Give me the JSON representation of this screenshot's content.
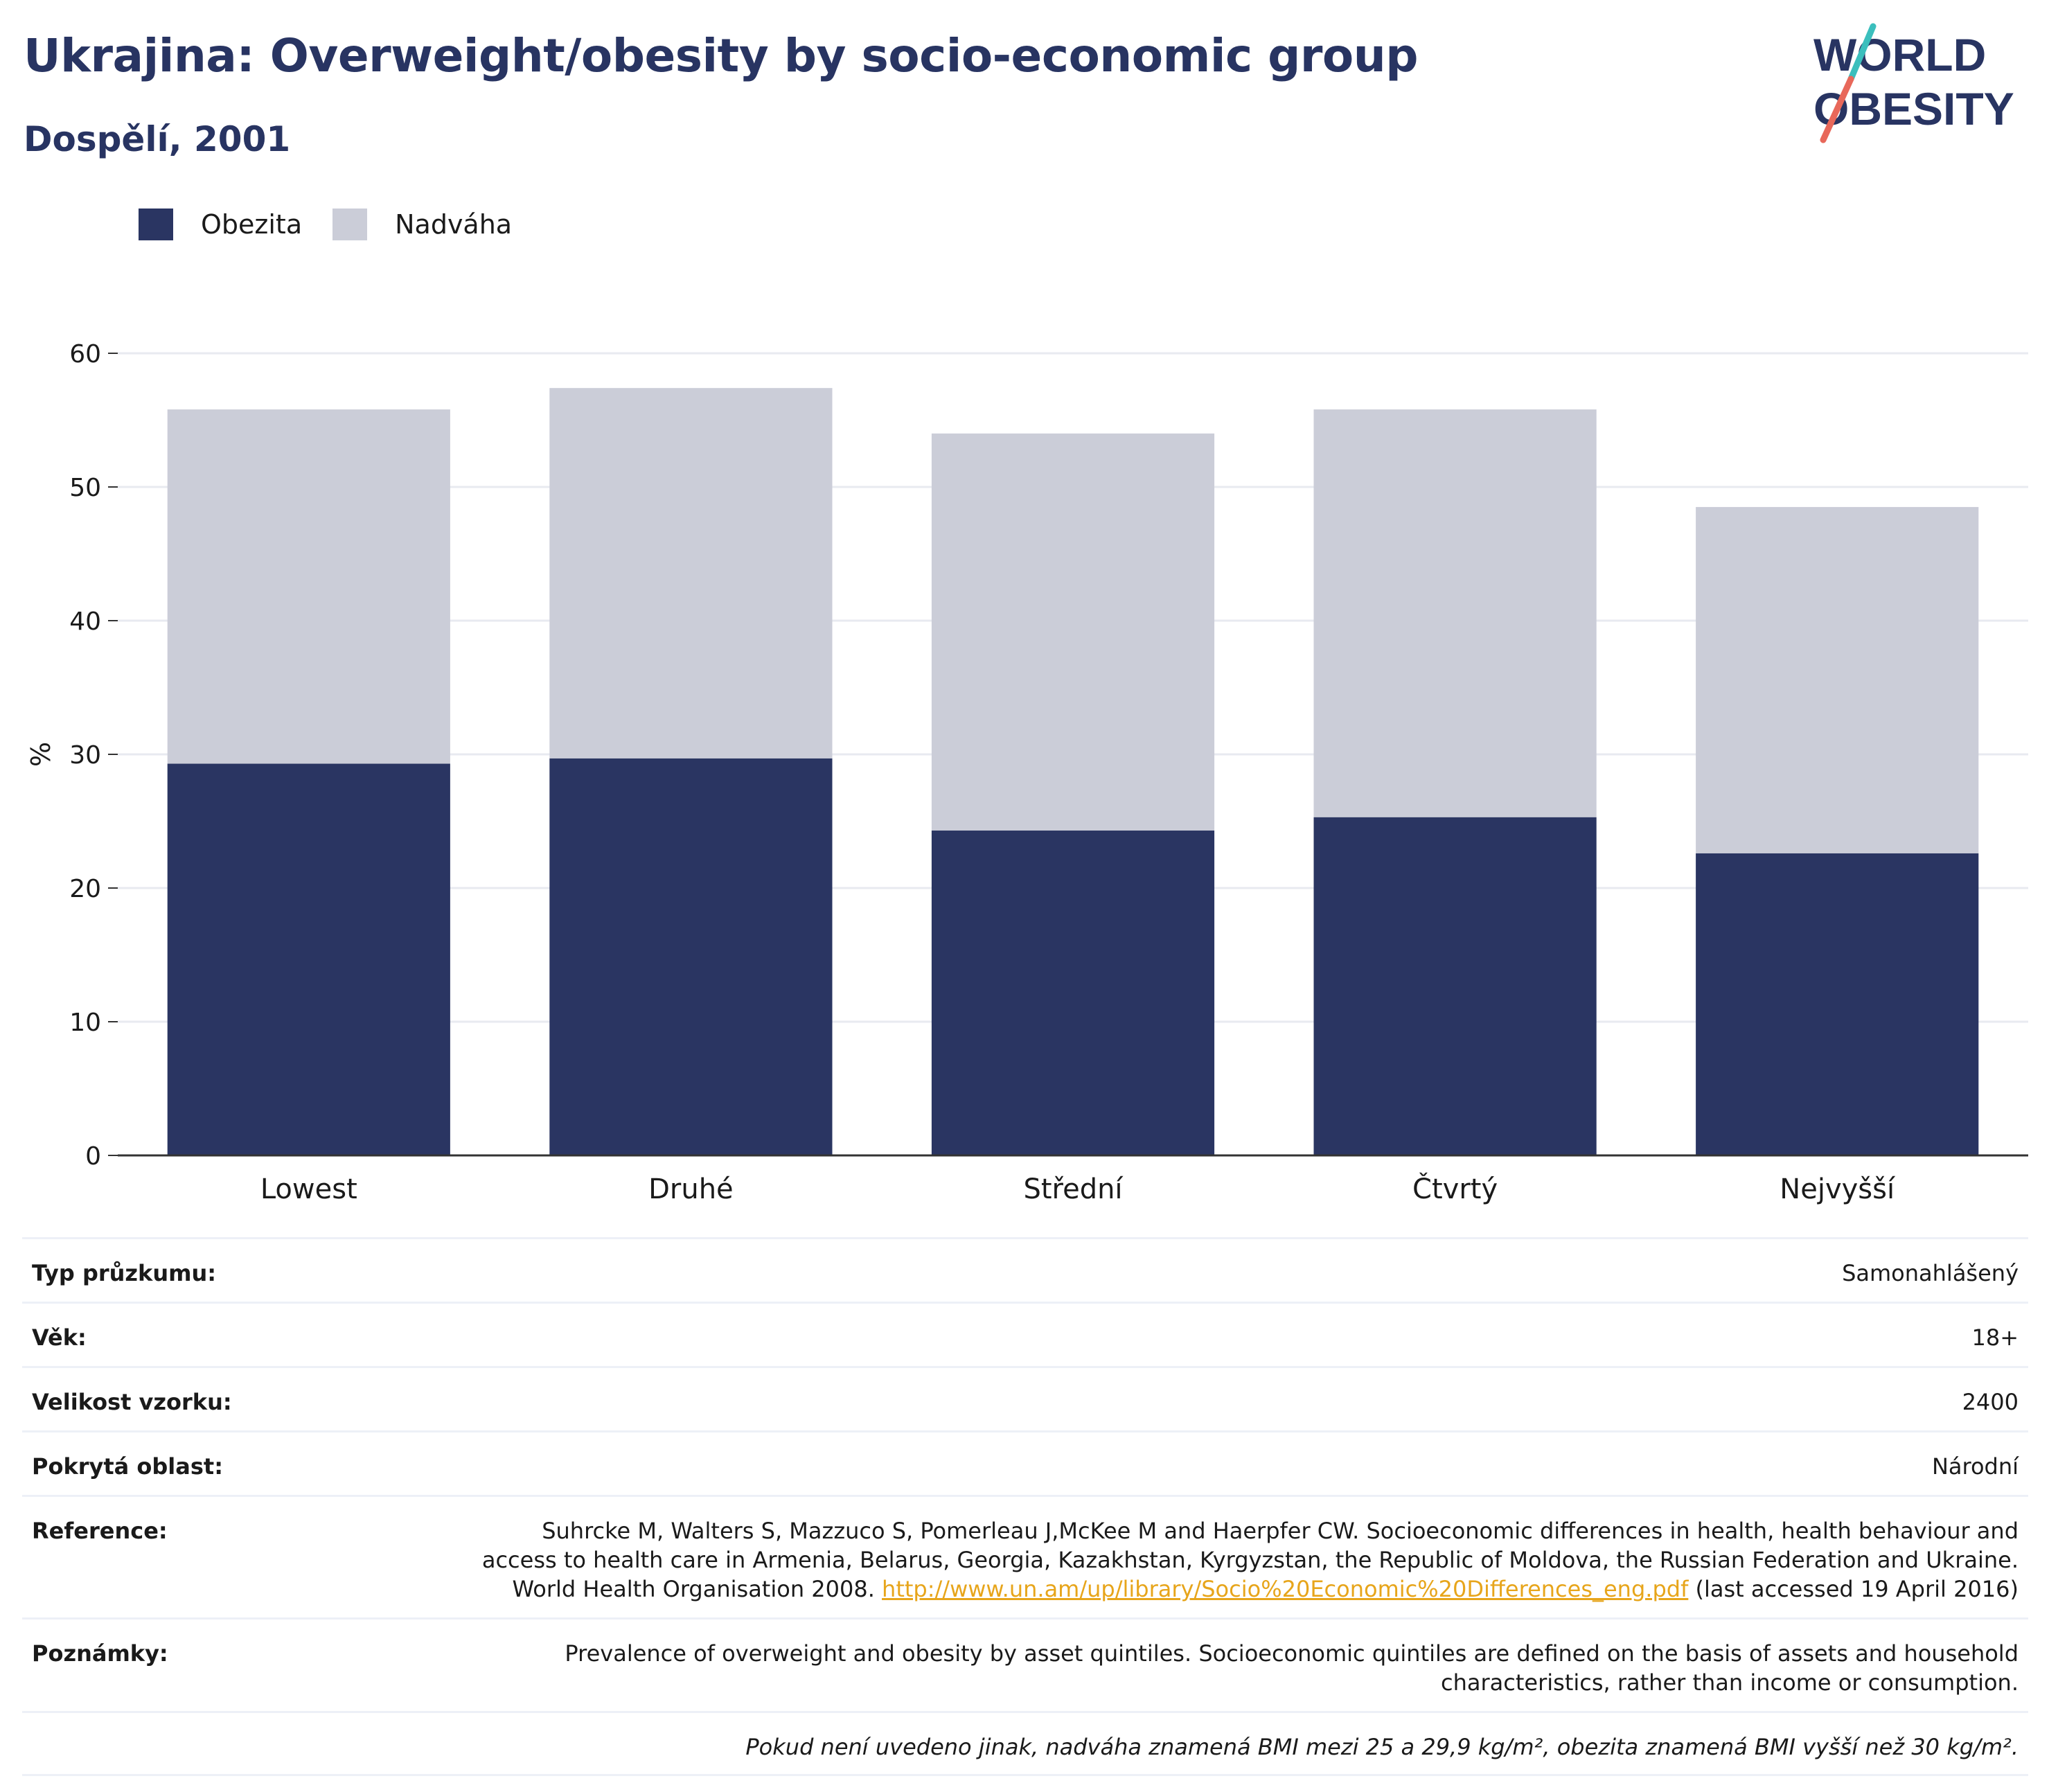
{
  "title": "Ukrajina: Overweight/obesity by socio-economic group",
  "subtitle": "Dospělí, 2001",
  "logo": {
    "line1": "WORLD",
    "line2": "OBESITY"
  },
  "colors": {
    "obesity": "#2a3562",
    "overweight": "#cbcdd8",
    "title": "#283462",
    "link": "#e7a51b",
    "grid": "#e8eaf0"
  },
  "chart_data": {
    "type": "bar",
    "stacked": true,
    "categories": [
      "Lowest",
      "Druhé",
      "Střední",
      "Čtvrtý",
      "Nejvyšší"
    ],
    "series": [
      {
        "name": "Obezita",
        "values": [
          29.3,
          29.7,
          24.3,
          25.3,
          22.6
        ],
        "color": "#2a3562"
      },
      {
        "name": "Nadváha",
        "values": [
          26.5,
          27.7,
          29.7,
          30.5,
          25.9
        ],
        "color": "#cbcdd8"
      }
    ],
    "totals": [
      55.8,
      57.4,
      54.0,
      55.8,
      48.5
    ],
    "ylabel": "%",
    "xlabel": "",
    "ylim": [
      0,
      60
    ],
    "yticks": [
      0,
      10,
      20,
      30,
      40,
      50,
      60
    ],
    "grid": true,
    "legend": "top-left"
  },
  "info": [
    {
      "label": "Typ průzkumu:",
      "value": "Samonahlášený"
    },
    {
      "label": "Věk:",
      "value": "18+"
    },
    {
      "label": "Velikost vzorku:",
      "value": "2400"
    },
    {
      "label": "Pokrytá oblast:",
      "value": "Národní"
    }
  ],
  "reference": {
    "label": "Reference:",
    "text_before": "Suhrcke M, Walters S, Mazzuco S, Pomerleau J,McKee M and Haerpfer CW. Socioeconomic differences in health, health behaviour and access to health care in Armenia, Belarus, Georgia, Kazakhstan, Kyrgyzstan, the Republic of Moldova, the Russian Federation and Ukraine. World Health Organisation 2008. ",
    "link": "http://www.un.am/up/library/Socio%20Economic%20Differences_eng.pdf",
    "text_after": " (last accessed 19 April 2016)"
  },
  "notes": {
    "label": "Poznámky:",
    "value": "Prevalence of overweight and obesity by asset quintiles. Socioeconomic quintiles are defined on the basis of assets and household characteristics, rather than income or consumption."
  },
  "footnote": "Pokud není uvedeno jinak, nadváha znamená BMI mezi 25 a 29,9 kg/m², obezita znamená BMI vyšší než 30 kg/m²."
}
